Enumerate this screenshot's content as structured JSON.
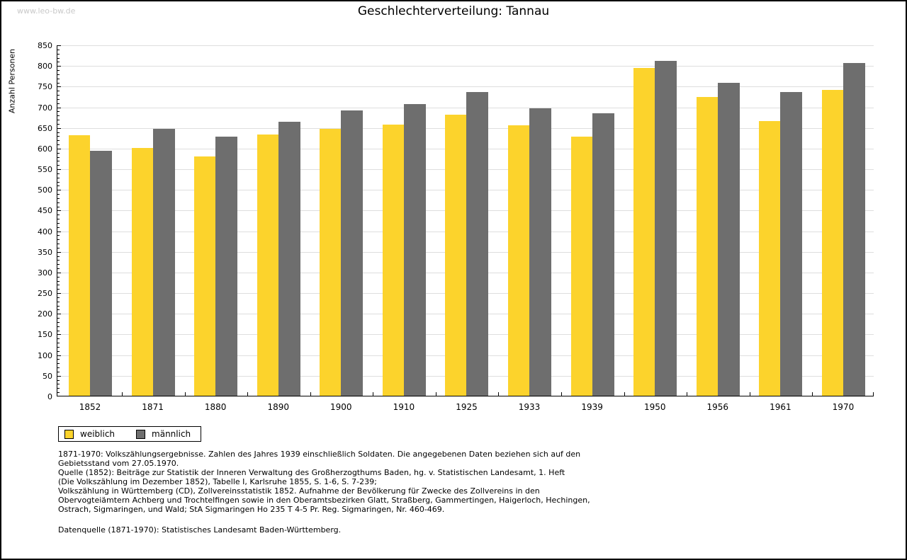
{
  "watermark": "www.leo-bw.de",
  "title": "Geschlechterverteilung: Tannau",
  "chart_data": {
    "type": "bar",
    "title": "Geschlechterverteilung: Tannau",
    "xlabel": "",
    "ylabel": "Anzahl Personen",
    "ylim": [
      0,
      850
    ],
    "ytick_step": 50,
    "ytick_minor_step": 10,
    "grid": true,
    "legend_position": "bottom-left",
    "categories": [
      "1852",
      "1871",
      "1880",
      "1890",
      "1900",
      "1910",
      "1925",
      "1933",
      "1939",
      "1950",
      "1956",
      "1961",
      "1970"
    ],
    "series": [
      {
        "name": "weiblich",
        "color": "#FCD32C",
        "values": [
          630,
          600,
          579,
          633,
          646,
          656,
          681,
          655,
          627,
          794,
          724,
          665,
          741
        ]
      },
      {
        "name": "männlich",
        "color": "#6E6E6E",
        "values": [
          593,
          646,
          628,
          663,
          691,
          706,
          735,
          696,
          684,
          811,
          757,
          735,
          805
        ]
      }
    ]
  },
  "footnote_lines": [
    "1871-1970: Volkszählungsergebnisse. Zahlen des Jahres 1939 einschließlich Soldaten. Die angegebenen Daten beziehen sich auf den",
    "Gebietsstand vom 27.05.1970.",
    "Quelle (1852): Beiträge zur Statistik der Inneren Verwaltung des Großherzogthums Baden, hg. v. Statistischen Landesamt, 1. Heft",
    "(Die Volkszählung im Dezember 1852), Tabelle I, Karlsruhe 1855, S. 1-6, S. 7-239;",
    "Volkszählung in Württemberg (CD), Zollvereinsstatistik 1852. Aufnahme der Bevölkerung für Zwecke des Zollvereins in den",
    "Obervogteiämtern Achberg und Trochtelfingen sowie in den Oberamtsbezirken Glatt, Straßberg, Gammertingen, Haigerloch, Hechingen,",
    "Ostrach, Sigmaringen, und Wald; StA Sigmaringen Ho 235 T 4-5 Pr. Reg. Sigmaringen, Nr. 460-469."
  ],
  "datasource": "Datenquelle (1871-1970): Statistisches Landesamt Baden-Württemberg.",
  "colors": {
    "gridline": "#DEDEDE",
    "axis": "#000000",
    "watermark": "#C9C9C9",
    "background": "#FFFFFF"
  }
}
